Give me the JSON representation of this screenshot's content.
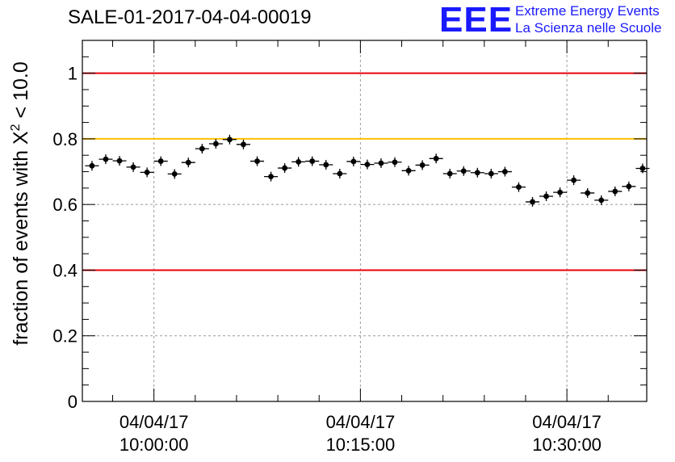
{
  "chart_data": {
    "type": "scatter",
    "title": "SALE-01-2017-04-04-00019",
    "ylabel_main": "fraction of events with X",
    "ylabel_sup": "2",
    "ylabel_tail": " < 10.0",
    "xlabel": "",
    "ylim": [
      0,
      1.1
    ],
    "y_ticks": [
      0,
      0.2,
      0.4,
      0.6,
      0.8,
      1
    ],
    "y_tick_labels": [
      "0",
      "0.2",
      "0.4",
      "0.6",
      "0.8",
      "1"
    ],
    "x_range_minutes": [
      -5.2,
      35.8
    ],
    "x_ticks": [
      {
        "minute": 0,
        "date": "04/04/17",
        "time": "10:00:00"
      },
      {
        "minute": 15,
        "date": "04/04/17",
        "time": "10:15:00"
      },
      {
        "minute": 30,
        "date": "04/04/17",
        "time": "10:30:00"
      }
    ],
    "grid": true,
    "reference_lines": [
      {
        "y": 1.0,
        "color": "#e8000b"
      },
      {
        "y": 0.8,
        "color": "#ffc000"
      },
      {
        "y": 0.4,
        "color": "#e8000b"
      }
    ],
    "series": [
      {
        "x_minutes": [
          -4.5,
          -3.5,
          -2.5,
          -1.5,
          -0.5,
          0.5,
          1.5,
          2.5,
          3.5,
          4.5,
          5.5,
          6.5,
          7.5,
          8.5,
          9.5,
          10.5,
          11.5,
          12.5,
          13.5,
          14.5,
          15.5,
          16.5,
          17.5,
          18.5,
          19.5,
          20.5,
          21.5,
          22.5,
          23.5,
          24.5,
          25.5,
          26.5,
          27.5,
          28.5,
          29.5,
          30.5,
          31.5,
          32.5,
          33.5,
          34.5,
          35.5
        ],
        "values": [
          0.718,
          0.738,
          0.733,
          0.714,
          0.698,
          0.732,
          0.693,
          0.728,
          0.77,
          0.785,
          0.798,
          0.783,
          0.732,
          0.685,
          0.711,
          0.73,
          0.732,
          0.721,
          0.694,
          0.731,
          0.722,
          0.726,
          0.729,
          0.703,
          0.72,
          0.74,
          0.694,
          0.702,
          0.697,
          0.694,
          0.7,
          0.653,
          0.608,
          0.625,
          0.637,
          0.674,
          0.635,
          0.613,
          0.64,
          0.655,
          0.71
        ],
        "color": "#000000"
      }
    ]
  },
  "logo": {
    "mark": "EEE",
    "line1": "Extreme Energy Events",
    "line2": "La Scienza nelle Scuole"
  }
}
